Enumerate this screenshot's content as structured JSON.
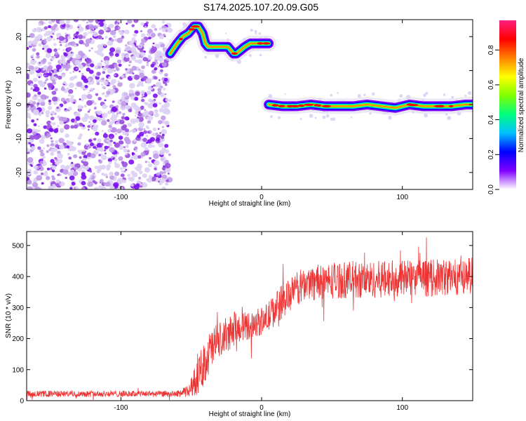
{
  "title": "S174.2025.107.20.09.G05",
  "chart_data": [
    {
      "type": "heatmap",
      "xlabel": "Height of straight line (km)",
      "ylabel": "Frequency (Hz)",
      "xlim": [
        -167,
        150
      ],
      "ylim": [
        -25,
        25
      ],
      "xticks": [
        -100,
        0,
        100
      ],
      "yticks": [
        -20,
        -10,
        0,
        10,
        20
      ],
      "colorbar": {
        "label": "Normalized spectral amplitude",
        "range": [
          0,
          0.97
        ],
        "ticks": [
          "0.0",
          "0.2",
          "0.4",
          "0.6",
          "0.8"
        ],
        "colors": [
          "#e0d8f0",
          "#8000ff",
          "#0000ff",
          "#00e0ff",
          "#00ff40",
          "#ffff00",
          "#ff8000",
          "#ff0000",
          "#ff2080"
        ]
      },
      "noise_region": {
        "x": [
          -167,
          -65
        ],
        "y": [
          -25,
          25
        ]
      },
      "ridges": [
        {
          "name": "upper",
          "x": [
            -65,
            -60,
            -56,
            -52,
            -48,
            -45,
            -42,
            -40,
            -38,
            -35,
            -32,
            -28,
            -24,
            -20,
            -18,
            -15,
            -12,
            -8,
            -5,
            -2,
            0,
            3,
            5
          ],
          "y": [
            15,
            18,
            20,
            21,
            23,
            23,
            21,
            18,
            17,
            17,
            17,
            17,
            17,
            15,
            15,
            16,
            17,
            18,
            18,
            18,
            18,
            18,
            18
          ]
        },
        {
          "name": "lower",
          "x": [
            5,
            15,
            25,
            35,
            45,
            55,
            65,
            75,
            85,
            95,
            105,
            115,
            125,
            135,
            145,
            150
          ],
          "y": [
            0,
            -0.5,
            -0.5,
            0,
            -0.5,
            -0.5,
            -0.5,
            0,
            -0.5,
            -1,
            0,
            -0.5,
            -0.5,
            -0.5,
            0,
            0
          ]
        }
      ]
    },
    {
      "type": "line",
      "xlabel": "Height of straight line (km)",
      "ylabel": "SNR (10 * v/v)",
      "xlim": [
        -167,
        150
      ],
      "ylim": [
        0,
        545
      ],
      "xticks": [
        -100,
        0,
        100
      ],
      "yticks": [
        0,
        100,
        200,
        300,
        400,
        500
      ],
      "color": "#ee3333",
      "envelope": {
        "x": [
          -167,
          -60,
          -52,
          -45,
          -40,
          -35,
          -30,
          -25,
          -20,
          -15,
          -10,
          -5,
          0,
          5,
          10,
          15,
          20,
          25,
          30,
          40,
          60,
          80,
          100,
          120,
          140,
          150
        ],
        "mean": [
          22,
          22,
          30,
          80,
          130,
          170,
          190,
          210,
          230,
          240,
          240,
          250,
          255,
          270,
          300,
          320,
          340,
          360,
          375,
          385,
          390,
          390,
          395,
          395,
          400,
          405
        ],
        "spread": [
          10,
          10,
          20,
          60,
          70,
          70,
          60,
          60,
          55,
          50,
          45,
          45,
          45,
          50,
          55,
          55,
          55,
          55,
          55,
          60,
          60,
          60,
          60,
          60,
          60,
          60
        ]
      }
    }
  ]
}
